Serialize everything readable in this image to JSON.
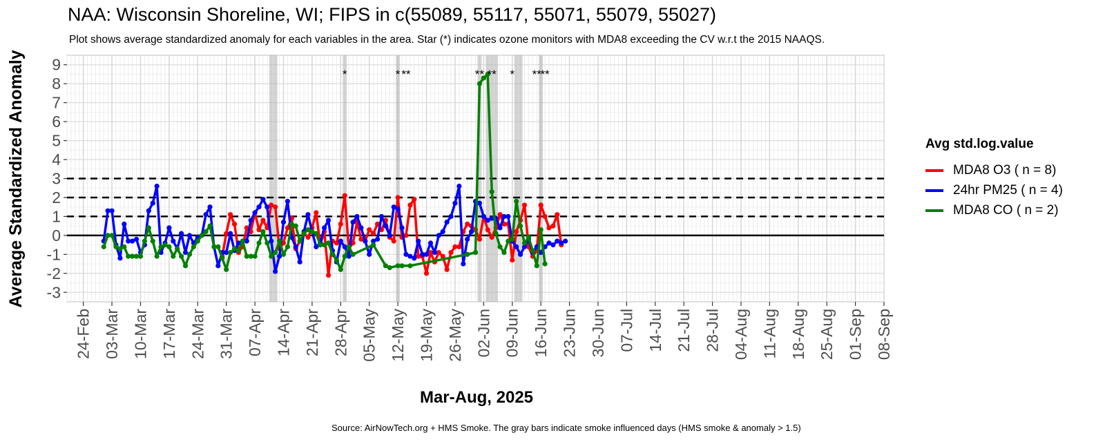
{
  "title": "NAA: Wisconsin Shoreline, WI; FIPS in c(55089, 55117, 55071, 55079, 55027)",
  "subtitle": "Plot shows average standardized anomaly for each variables in the area. Star (*) indicates ozone monitors with MDA8 exceeding the CV w.r.t the 2015 NAAQS.",
  "caption": "Source: AirNowTech.org + HMS Smoke. The gray bars indicate smoke influenced days (HMS smoke & anomaly > 1.5)",
  "legend": {
    "title": "Avg std.log.value",
    "items": [
      {
        "label": "MDA8 O3 ( n = 8)",
        "color": "#ff0000"
      },
      {
        "label": "24hr PM25 ( n = 4)",
        "color": "#0000ff"
      },
      {
        "label": "MDA8 CO ( n = 2)",
        "color": "#008000"
      }
    ]
  },
  "chart_data": {
    "type": "line",
    "title": "NAA: Wisconsin Shoreline, WI; FIPS in c(55089, 55117, 55071, 55079, 55027)",
    "xlabel": "Mar-Aug, 2025",
    "ylabel": "Average Standardized Anomaly",
    "xlim": [
      "2025-02-20",
      "2025-09-08"
    ],
    "ylim": [
      -3.5,
      9.5
    ],
    "x_ticks": [
      "24-Feb",
      "03-Mar",
      "10-Mar",
      "17-Mar",
      "24-Mar",
      "31-Mar",
      "07-Apr",
      "14-Apr",
      "21-Apr",
      "28-Apr",
      "05-May",
      "12-May",
      "19-May",
      "26-May",
      "02-Jun",
      "09-Jun",
      "16-Jun",
      "23-Jun",
      "30-Jun",
      "07-Jul",
      "14-Jul",
      "21-Jul",
      "28-Jul",
      "04-Aug",
      "11-Aug",
      "18-Aug",
      "25-Aug",
      "01-Sep",
      "08-Sep"
    ],
    "x_tick_dates": [
      "2025-02-24",
      "2025-03-03",
      "2025-03-10",
      "2025-03-17",
      "2025-03-24",
      "2025-03-31",
      "2025-04-07",
      "2025-04-14",
      "2025-04-21",
      "2025-04-28",
      "2025-05-05",
      "2025-05-12",
      "2025-05-19",
      "2025-05-26",
      "2025-06-02",
      "2025-06-09",
      "2025-06-16",
      "2025-06-23",
      "2025-06-30",
      "2025-07-07",
      "2025-07-14",
      "2025-07-21",
      "2025-07-28",
      "2025-08-04",
      "2025-08-11",
      "2025-08-18",
      "2025-08-25",
      "2025-09-01",
      "2025-09-08"
    ],
    "y_ticks": [
      -3,
      -2,
      -1,
      0,
      1,
      2,
      3,
      4,
      5,
      6,
      7,
      8,
      9
    ],
    "reference_lines": {
      "solid": [
        0
      ],
      "dashed": [
        1,
        2,
        3
      ]
    },
    "smoke_days": [
      "2025-04-11",
      "2025-04-12",
      "2025-04-29",
      "2025-05-12",
      "2025-06-01",
      "2025-06-03",
      "2025-06-04",
      "2025-06-05",
      "2025-06-10",
      "2025-06-11",
      "2025-06-16"
    ],
    "exceedance_stars": [
      {
        "date": "2025-04-29",
        "label": "*"
      },
      {
        "date": "2025-05-12",
        "label": "*"
      },
      {
        "date": "2025-05-14",
        "label": "**"
      },
      {
        "date": "2025-06-01",
        "label": "**"
      },
      {
        "date": "2025-06-04",
        "label": "**"
      },
      {
        "date": "2025-06-09",
        "label": "*"
      },
      {
        "date": "2025-06-15",
        "label": "**"
      },
      {
        "date": "2025-06-17",
        "label": "**"
      }
    ],
    "series": [
      {
        "name": "MDA8 O3 ( n = 8)",
        "color": "#ff0000",
        "dates": [
          "2025-03-30",
          "2025-03-31",
          "2025-04-01",
          "2025-04-02",
          "2025-04-03",
          "2025-04-04",
          "2025-04-05",
          "2025-04-06",
          "2025-04-07",
          "2025-04-08",
          "2025-04-09",
          "2025-04-10",
          "2025-04-11",
          "2025-04-12",
          "2025-04-13",
          "2025-04-14",
          "2025-04-15",
          "2025-04-16",
          "2025-04-17",
          "2025-04-18",
          "2025-04-19",
          "2025-04-20",
          "2025-04-21",
          "2025-04-22",
          "2025-04-23",
          "2025-04-24",
          "2025-04-25",
          "2025-04-26",
          "2025-04-27",
          "2025-04-28",
          "2025-04-29",
          "2025-04-30",
          "2025-05-01",
          "2025-05-02",
          "2025-05-03",
          "2025-05-04",
          "2025-05-05",
          "2025-05-06",
          "2025-05-07",
          "2025-05-08",
          "2025-05-09",
          "2025-05-10",
          "2025-05-11",
          "2025-05-12",
          "2025-05-13",
          "2025-05-14",
          "2025-05-15",
          "2025-05-16",
          "2025-05-17",
          "2025-05-18",
          "2025-05-19",
          "2025-05-20",
          "2025-05-21",
          "2025-05-22",
          "2025-05-23",
          "2025-05-24",
          "2025-05-25",
          "2025-05-26",
          "2025-05-27",
          "2025-05-28",
          "2025-05-29",
          "2025-05-30",
          "2025-05-31",
          "2025-06-01",
          "2025-06-02",
          "2025-06-03",
          "2025-06-04",
          "2025-06-05",
          "2025-06-06",
          "2025-06-07",
          "2025-06-08",
          "2025-06-09",
          "2025-06-10",
          "2025-06-11",
          "2025-06-12",
          "2025-06-13",
          "2025-06-14",
          "2025-06-15",
          "2025-06-16",
          "2025-06-17",
          "2025-06-18",
          "2025-06-19",
          "2025-06-20",
          "2025-06-21"
        ],
        "values": [
          -1.1,
          0.1,
          1.1,
          0.6,
          -0.9,
          -0.6,
          0.4,
          0.2,
          1.2,
          0.3,
          0.8,
          0.4,
          1.6,
          1.5,
          -0.7,
          -0.4,
          0.4,
          0.9,
          -0.7,
          -0.3,
          0.1,
          -0.1,
          0.4,
          1.2,
          -0.5,
          0.2,
          -2.1,
          -0.3,
          -0.4,
          0.6,
          2.1,
          -0.7,
          -0.4,
          0.7,
          -0.2,
          -0.3,
          0.3,
          0.1,
          0.6,
          0.3,
          0.8,
          -0.1,
          -0.3,
          2.0,
          -0.1,
          0.0,
          1.6,
          1.9,
          -1.1,
          -1.1,
          -2.0,
          -0.9,
          -1.4,
          -0.9,
          -1.1,
          -1.8,
          -0.9,
          -0.6,
          -0.6,
          0.2,
          0.6,
          0.5,
          0.3,
          -0.2,
          1.0,
          0.3,
          -0.1,
          0.4,
          1.1,
          0.6,
          0.6,
          -1.3,
          0.2,
          0.8,
          1.6,
          -0.6,
          -1.1,
          -0.8,
          1.6,
          1.0,
          0.4,
          0.5,
          1.1,
          -0.5
        ]
      },
      {
        "name": "24hr PM25 ( n = 4)",
        "color": "#0000ff",
        "dates": [
          "2025-03-01",
          "2025-03-02",
          "2025-03-03",
          "2025-03-04",
          "2025-03-05",
          "2025-03-06",
          "2025-03-07",
          "2025-03-08",
          "2025-03-09",
          "2025-03-10",
          "2025-03-11",
          "2025-03-12",
          "2025-03-13",
          "2025-03-14",
          "2025-03-15",
          "2025-03-16",
          "2025-03-17",
          "2025-03-18",
          "2025-03-19",
          "2025-03-20",
          "2025-03-21",
          "2025-03-22",
          "2025-03-23",
          "2025-03-24",
          "2025-03-25",
          "2025-03-26",
          "2025-03-27",
          "2025-03-28",
          "2025-03-29",
          "2025-03-30",
          "2025-03-31",
          "2025-04-01",
          "2025-04-02",
          "2025-04-03",
          "2025-04-04",
          "2025-04-05",
          "2025-04-06",
          "2025-04-07",
          "2025-04-08",
          "2025-04-09",
          "2025-04-10",
          "2025-04-11",
          "2025-04-12",
          "2025-04-13",
          "2025-04-14",
          "2025-04-15",
          "2025-04-16",
          "2025-04-17",
          "2025-04-18",
          "2025-04-19",
          "2025-04-20",
          "2025-04-21",
          "2025-04-22",
          "2025-04-23",
          "2025-04-24",
          "2025-04-25",
          "2025-04-26",
          "2025-04-27",
          "2025-04-28",
          "2025-04-29",
          "2025-04-30",
          "2025-05-01",
          "2025-05-02",
          "2025-05-03",
          "2025-05-04",
          "2025-05-05",
          "2025-05-06",
          "2025-05-07",
          "2025-05-08",
          "2025-05-09",
          "2025-05-10",
          "2025-05-11",
          "2025-05-12",
          "2025-05-13",
          "2025-05-14",
          "2025-05-15",
          "2025-05-16",
          "2025-05-17",
          "2025-05-18",
          "2025-05-19",
          "2025-05-20",
          "2025-05-21",
          "2025-05-22",
          "2025-05-23",
          "2025-05-24",
          "2025-05-25",
          "2025-05-26",
          "2025-05-27",
          "2025-05-28",
          "2025-05-29",
          "2025-05-30",
          "2025-05-31",
          "2025-06-01",
          "2025-06-02",
          "2025-06-03",
          "2025-06-04",
          "2025-06-05",
          "2025-06-06",
          "2025-06-07",
          "2025-06-08",
          "2025-06-09",
          "2025-06-10",
          "2025-06-11",
          "2025-06-12",
          "2025-06-13",
          "2025-06-14",
          "2025-06-15",
          "2025-06-16",
          "2025-06-17",
          "2025-06-18",
          "2025-06-19",
          "2025-06-20",
          "2025-06-21",
          "2025-06-22"
        ],
        "values": [
          -0.3,
          1.3,
          1.3,
          -0.5,
          -1.2,
          0.6,
          -0.3,
          -0.3,
          -0.2,
          -0.9,
          -0.5,
          1.3,
          1.7,
          2.6,
          -0.9,
          -0.4,
          0.4,
          -0.3,
          -0.7,
          0.1,
          -0.9,
          0.0,
          -0.4,
          -0.1,
          0.0,
          1.1,
          1.5,
          -0.6,
          -1.6,
          -0.9,
          -0.9,
          0.1,
          -0.8,
          -0.4,
          -0.3,
          -0.3,
          0.8,
          1.2,
          1.5,
          1.9,
          1.5,
          -0.3,
          -1.9,
          -1.1,
          0.7,
          1.8,
          -0.1,
          -0.6,
          -1.4,
          0.2,
          1.1,
          0.2,
          -0.6,
          -0.4,
          0.4,
          0.8,
          -0.8,
          -1.4,
          -0.3,
          -0.6,
          -1.1,
          0.7,
          1.0,
          0.4,
          -0.3,
          -1.0,
          -0.3,
          -0.2,
          1.0,
          0.5,
          0.0,
          1.5,
          1.4,
          0.4,
          -1.0,
          -1.1,
          -1.2,
          -0.3,
          -1.0,
          -1.0,
          -0.4,
          -0.9,
          0.0,
          0.2,
          0.7,
          1.0,
          1.7,
          2.6,
          -1.5,
          -0.2,
          0.2,
          1.8,
          1.7,
          1.0,
          0.8,
          0.9,
          0.9,
          0.4,
          1.0,
          1.0,
          -0.3,
          -0.6,
          -1.0,
          -0.6,
          -0.2,
          -0.9,
          -0.6,
          -0.9,
          -0.6,
          -0.4,
          -0.5,
          -0.3,
          -0.4,
          -0.3
        ]
      },
      {
        "name": "MDA8 CO ( n = 2)",
        "color": "#008000",
        "dates": [
          "2025-03-01",
          "2025-03-02",
          "2025-03-03",
          "2025-03-04",
          "2025-03-05",
          "2025-03-06",
          "2025-03-07",
          "2025-03-08",
          "2025-03-09",
          "2025-03-10",
          "2025-03-11",
          "2025-03-12",
          "2025-03-13",
          "2025-03-14",
          "2025-03-15",
          "2025-03-16",
          "2025-03-17",
          "2025-03-18",
          "2025-03-19",
          "2025-03-20",
          "2025-03-21",
          "2025-03-22",
          "2025-03-23",
          "2025-03-24",
          "2025-03-25",
          "2025-03-26",
          "2025-03-27",
          "2025-03-28",
          "2025-03-29",
          "2025-03-30",
          "2025-03-31",
          "2025-04-01",
          "2025-04-02",
          "2025-04-03",
          "2025-04-04",
          "2025-04-05",
          "2025-04-06",
          "2025-04-07",
          "2025-04-08",
          "2025-04-09",
          "2025-04-10",
          "2025-04-11",
          "2025-04-12",
          "2025-04-13",
          "2025-04-14",
          "2025-04-15",
          "2025-04-16",
          "2025-04-17",
          "2025-04-18",
          "2025-04-19",
          "2025-04-20",
          "2025-04-21",
          "2025-04-22",
          "2025-04-23",
          "2025-04-24",
          "2025-04-25",
          "2025-04-26",
          "2025-04-27",
          "2025-04-28",
          "2025-04-29",
          "2025-04-30",
          "2025-05-01",
          "2025-05-06",
          "2025-05-09",
          "2025-05-10",
          "2025-05-12",
          "2025-05-13",
          "2025-05-15",
          "2025-05-29",
          "2025-05-31",
          "2025-06-01",
          "2025-06-02",
          "2025-06-03",
          "2025-06-04",
          "2025-06-05",
          "2025-06-06",
          "2025-06-07",
          "2025-06-08",
          "2025-06-09",
          "2025-06-10",
          "2025-06-11",
          "2025-06-12",
          "2025-06-13",
          "2025-06-14",
          "2025-06-15",
          "2025-06-16",
          "2025-06-17"
        ],
        "values": [
          -0.6,
          0.0,
          0.0,
          -0.6,
          -0.7,
          -0.6,
          -1.1,
          -1.1,
          -1.1,
          -1.1,
          -0.3,
          0.4,
          -0.3,
          -1.1,
          -0.6,
          -0.5,
          -0.6,
          -1.1,
          -0.7,
          -1.1,
          -1.6,
          -1.0,
          -0.6,
          -0.3,
          0.0,
          0.2,
          0.5,
          -0.6,
          -0.6,
          -1.2,
          -1.8,
          -0.9,
          -0.7,
          -0.8,
          -0.3,
          -1.1,
          -1.1,
          -1.1,
          -0.4,
          0.2,
          -0.4,
          -1.1,
          -0.9,
          -0.3,
          -1.0,
          -0.6,
          0.6,
          0.5,
          -0.3,
          0.1,
          0.3,
          0.2,
          0.1,
          -0.5,
          -0.5,
          -0.4,
          -1.0,
          -1.3,
          -1.8,
          -1.1,
          -0.6,
          -1.0,
          -0.5,
          -1.6,
          -1.7,
          -1.6,
          -1.6,
          -1.6,
          -1.0,
          -0.9,
          8.0,
          8.3,
          8.5,
          2.3,
          0.1,
          -0.6,
          -0.9,
          -0.3,
          -0.2,
          1.8,
          0.5,
          -0.4,
          -0.1,
          -0.8,
          -1.6,
          0.3,
          -1.5
        ]
      }
    ]
  }
}
